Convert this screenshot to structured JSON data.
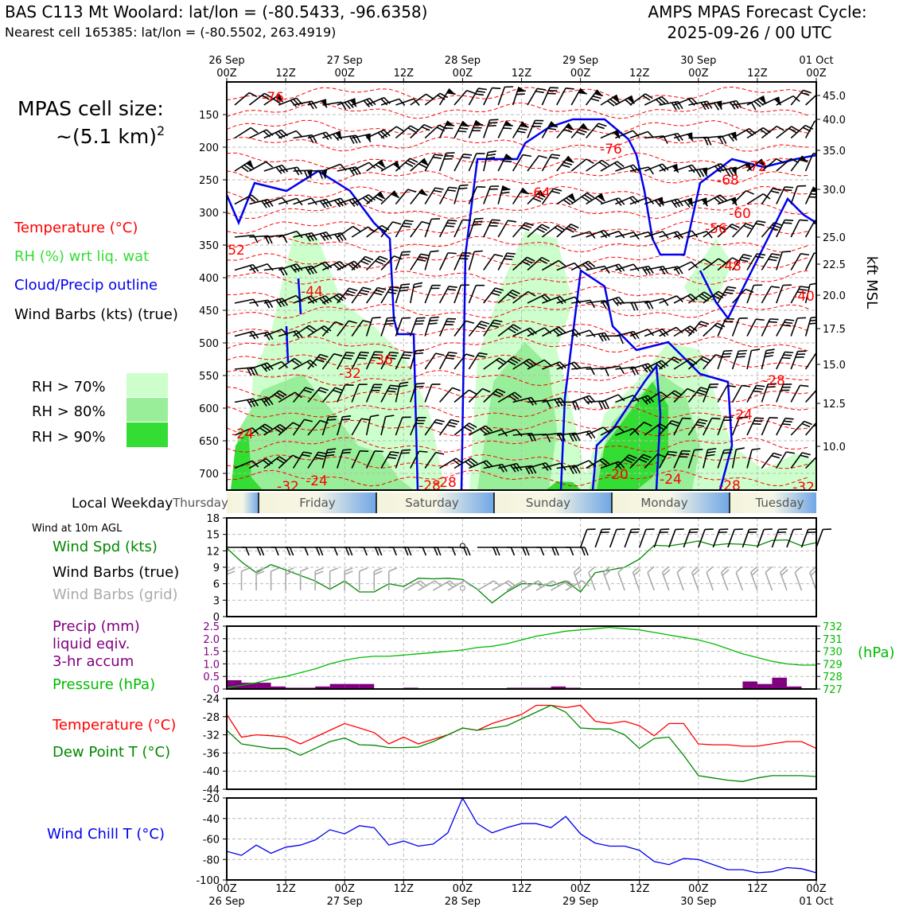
{
  "header": {
    "station_line": "BAS C113 Mt Woolard: lat/lon = (-80.5433, -96.6358)",
    "cell_line": "Nearest cell 165385: lat/lon = (-80.5502, 263.4919)",
    "forecast_title": "AMPS MPAS Forecast Cycle:",
    "forecast_cycle": "2025-09-26 / 00 UTC"
  },
  "colors": {
    "temperature": "#ff0000",
    "rh_label": "#33dd33",
    "cloud_outline": "#0000ee",
    "wind_speed": "#008800",
    "precip": "#800080",
    "pressure": "#00bb00",
    "dewpoint": "#008800",
    "windchill": "#0000ee",
    "grid_barb": "#aaaaaa",
    "rh70": "#ccffcc",
    "rh80": "#99ee99",
    "rh90": "#33dd33"
  },
  "time_axis": {
    "top_days": [
      "26 Sep",
      "27 Sep",
      "28 Sep",
      "29 Sep",
      "30 Sep",
      "01 Oct"
    ],
    "ticks": [
      "00Z",
      "12Z",
      "00Z",
      "12Z",
      "00Z",
      "12Z",
      "00Z",
      "12Z",
      "00Z",
      "12Z",
      "00Z"
    ]
  },
  "weekdays": [
    "Thursday",
    "Friday",
    "Saturday",
    "Sunday",
    "Monday",
    "Tuesday"
  ],
  "main_panel": {
    "cell_size_line1": "MPAS cell size:",
    "cell_size_line2": "~(5.1 km)",
    "cell_size_exp": "2",
    "legend": [
      {
        "text": "Temperature (°C)",
        "color": "#ff0000"
      },
      {
        "text": "RH (%) wrt liq. wat",
        "color": "#33dd33"
      },
      {
        "text": "Cloud/Precip outline",
        "color": "#0000ee"
      },
      {
        "text": "Wind Barbs (kts) (true)",
        "color": "#000000"
      }
    ],
    "rh_legend": [
      "RH > 70%",
      "RH > 80%",
      "RH > 90%"
    ],
    "local_weekday_label": "Local Weekday",
    "right_label": "kft MSL",
    "pressure_ticks": [
      "150",
      "200",
      "250",
      "300",
      "350",
      "400",
      "450",
      "500",
      "550",
      "600",
      "650",
      "700"
    ],
    "kft_ticks": [
      "45.0",
      "40.0",
      "35.0",
      "30.0",
      "25.0",
      "22.5",
      "20.0",
      "17.5",
      "15.0",
      "12.5",
      "10.0"
    ]
  },
  "temp_contour_labels": [
    "-76",
    "-76",
    "-72",
    "-68",
    "-64",
    "-60",
    "-56",
    "-52",
    "-48",
    "-44",
    "-40",
    "-36",
    "-32",
    "-28",
    "-28",
    "-24",
    "-24",
    "-24",
    "-24",
    "-28",
    "-20",
    "-32",
    "-32",
    "-28"
  ],
  "wind_panel": {
    "caption": "Wind at 10m AGL",
    "labels": [
      "Wind Spd (kts)",
      "Wind Barbs (true)",
      "Wind Barbs (grid)"
    ],
    "yticks": [
      "0",
      "3",
      "6",
      "9",
      "12",
      "15",
      "18"
    ]
  },
  "precip_panel": {
    "labels": [
      "Precip (mm)",
      "liquid eqiv.",
      "3-hr accum",
      "Pressure (hPa)"
    ],
    "left_ticks": [
      "0",
      "0.5",
      "1.0",
      "1.5",
      "2.0",
      "2.5"
    ],
    "right_ticks": [
      "727",
      "728",
      "729",
      "730",
      "731",
      "732"
    ],
    "right_unit": "(hPa)"
  },
  "temp_panel": {
    "labels": [
      "Temperature (°C)",
      "Dew Point T (°C)"
    ],
    "yticks": [
      "-44",
      "-40",
      "-36",
      "-32",
      "-28",
      "-24"
    ]
  },
  "chill_panel": {
    "label": "Wind Chill T (°C)",
    "yticks": [
      "-100",
      "-80",
      "-60",
      "-40",
      "-20"
    ]
  },
  "chart_data": [
    {
      "type": "line",
      "title": "Wind at 10m AGL",
      "x_hours": [
        0,
        3,
        6,
        9,
        12,
        15,
        18,
        21,
        24,
        27,
        30,
        33,
        36,
        39,
        42,
        45,
        48,
        51,
        54,
        57,
        60,
        63,
        66,
        69,
        72,
        75,
        78,
        81,
        84,
        87,
        90,
        93,
        96,
        99,
        102,
        105,
        108,
        111,
        114,
        117,
        120
      ],
      "series": [
        {
          "name": "Wind Spd (kts)",
          "values": [
            12.5,
            10,
            8,
            9.5,
            8.5,
            7.5,
            6.5,
            5,
            6.5,
            4.5,
            4.5,
            6,
            5.5,
            7,
            6.9,
            7,
            6.8,
            5,
            2.5,
            4.5,
            6,
            6,
            5.6,
            6.5,
            4.5,
            8,
            8.5,
            9,
            10.5,
            13,
            12.9,
            13.3,
            13.8,
            13,
            13.3,
            13.2,
            12.9,
            13.9,
            14,
            12.9,
            13.5
          ]
        }
      ],
      "ylim": [
        0,
        18
      ]
    },
    {
      "type": "bar",
      "title": "Precip (mm) liquid eqiv. 3-hr accum",
      "bars_hours": [
        3,
        6,
        9,
        12,
        15,
        18,
        21,
        24,
        27,
        30,
        33,
        36,
        39,
        42,
        45,
        48,
        51,
        54,
        57,
        60,
        63,
        66,
        69,
        72,
        75,
        78,
        81,
        84,
        87,
        90,
        93,
        96
      ],
      "values": [
        0.35,
        0.25,
        0.25,
        0.1,
        0.05,
        0.05,
        0.1,
        0.2,
        0.2,
        0.2,
        0,
        0,
        0.05,
        0,
        0,
        0,
        0,
        0,
        0,
        0.05,
        0.05,
        0.05,
        0.1,
        0.05,
        0,
        0,
        0,
        0,
        0,
        0,
        0,
        0
      ],
      "extra": [
        {
          "x": 108,
          "v": 0.3
        },
        {
          "x": 111,
          "v": 0.2
        },
        {
          "x": 114,
          "v": 0.45
        },
        {
          "x": 117,
          "v": 0.1
        }
      ],
      "ylim": [
        0,
        2.5
      ]
    },
    {
      "type": "line",
      "title": "Pressure (hPa)",
      "x_hours": [
        0,
        3,
        6,
        9,
        12,
        15,
        18,
        21,
        24,
        27,
        30,
        33,
        36,
        39,
        42,
        45,
        48,
        51,
        54,
        57,
        60,
        63,
        66,
        69,
        72,
        75,
        78,
        81,
        84,
        87,
        90,
        93,
        96,
        99,
        102,
        105,
        108,
        111,
        114,
        117,
        120
      ],
      "series": [
        {
          "name": "Pressure (hPa)",
          "values": [
            727.1,
            727.3,
            727.5,
            727.8,
            728.0,
            728.3,
            728.6,
            729.0,
            729.3,
            729.5,
            729.6,
            729.6,
            729.7,
            729.8,
            729.9,
            730.0,
            730.1,
            730.3,
            730.4,
            730.6,
            730.9,
            731.2,
            731.4,
            731.6,
            731.7,
            731.8,
            731.9,
            731.8,
            731.7,
            731.5,
            731.3,
            731.1,
            730.9,
            730.6,
            730.2,
            729.8,
            729.5,
            729.2,
            729.0,
            728.9,
            728.9
          ]
        }
      ],
      "ylim": [
        727,
        732
      ]
    },
    {
      "type": "line",
      "title": "Temperature / Dew Point",
      "x_hours": [
        0,
        3,
        6,
        9,
        12,
        15,
        18,
        21,
        24,
        27,
        30,
        33,
        36,
        39,
        42,
        45,
        48,
        51,
        54,
        57,
        60,
        63,
        66,
        69,
        72,
        75,
        78,
        81,
        84,
        87,
        90,
        93,
        96,
        99,
        102,
        105,
        108,
        111,
        114,
        117,
        120
      ],
      "series": [
        {
          "name": "Temperature (°C)",
          "values": [
            -27.5,
            -32.5,
            -32,
            -32.2,
            -32.5,
            -34,
            -32.5,
            -31,
            -29.5,
            -30.5,
            -31.5,
            -34,
            -32.5,
            -34,
            -33,
            -32,
            -30.5,
            -31,
            -29.5,
            -28.5,
            -27.5,
            -25.5,
            -25.5,
            -26,
            -25.5,
            -29,
            -29.5,
            -29,
            -30,
            -32.2,
            -29.5,
            -29.5,
            -34,
            -34.2,
            -34.2,
            -34.5,
            -34.5,
            -34,
            -33.5,
            -33.5,
            -35
          ]
        },
        {
          "name": "Dew Point T (°C)",
          "values": [
            -31,
            -34,
            -34.5,
            -35,
            -35,
            -36.5,
            -35,
            -33.5,
            -32.7,
            -34.2,
            -34.3,
            -34.8,
            -34.8,
            -34.7,
            -33.5,
            -32,
            -30.5,
            -31,
            -30.5,
            -30,
            -28.5,
            -27,
            -25.5,
            -27,
            -30.5,
            -30.7,
            -30.7,
            -32,
            -35,
            -32.8,
            -32.5,
            -36.5,
            -41,
            -41.5,
            -42,
            -42.3,
            -41.5,
            -41,
            -41,
            -41,
            -41.2
          ]
        }
      ],
      "ylim": [
        -44,
        -24
      ]
    },
    {
      "type": "line",
      "title": "Wind Chill T (°C)",
      "x_hours": [
        0,
        3,
        6,
        9,
        12,
        15,
        18,
        21,
        24,
        27,
        30,
        33,
        36,
        39,
        42,
        45,
        48,
        51,
        54,
        57,
        60,
        63,
        66,
        69,
        72,
        75,
        78,
        81,
        84,
        87,
        90,
        93,
        96,
        99,
        102,
        105,
        108,
        111,
        114,
        117,
        120
      ],
      "series": [
        {
          "name": "Wind Chill T (°C)",
          "values": [
            -72,
            -76,
            -66,
            -74,
            -68,
            -66,
            -61,
            -51,
            -55,
            -47,
            -49,
            -66,
            -62,
            -67,
            -65,
            -54,
            -20,
            -45,
            -54,
            -49,
            -45,
            -45,
            -49,
            -38,
            -55,
            -64,
            -67,
            -67,
            -71,
            -82,
            -85,
            -79,
            -80,
            -85,
            -90,
            -90,
            -93,
            -92,
            -88,
            -89,
            -93
          ]
        }
      ],
      "ylim": [
        -100,
        -20
      ]
    }
  ]
}
